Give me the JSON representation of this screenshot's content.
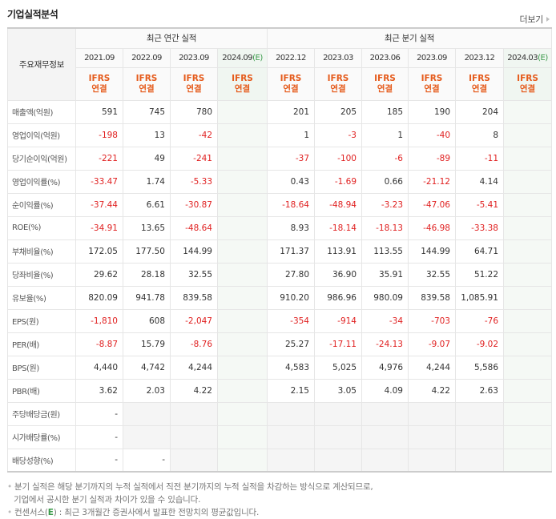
{
  "title": "기업실적분석",
  "more_label": "더보기",
  "table": {
    "row_header": "주요재무정보",
    "group_annual": "최근 연간 실적",
    "group_quarter": "최근 분기 실적",
    "periods": [
      {
        "label": "2021.09",
        "est": false
      },
      {
        "label": "2022.09",
        "est": false
      },
      {
        "label": "2023.09",
        "est": false
      },
      {
        "label": "2024.09",
        "est": true
      },
      {
        "label": "2022.12",
        "est": false
      },
      {
        "label": "2023.03",
        "est": false
      },
      {
        "label": "2023.06",
        "est": false
      },
      {
        "label": "2023.09",
        "est": false
      },
      {
        "label": "2023.12",
        "est": false
      },
      {
        "label": "2024.03",
        "est": true
      }
    ],
    "est_suffix": "(E)",
    "basis_line1": "IFRS",
    "basis_line2": "연결",
    "rows": [
      {
        "label": "매출액(억원)",
        "values": [
          "591",
          "745",
          "780",
          "",
          "201",
          "205",
          "185",
          "190",
          "204",
          ""
        ]
      },
      {
        "label": "영업이익(억원)",
        "values": [
          "-198",
          "13",
          "-42",
          "",
          "1",
          "-3",
          "1",
          "-40",
          "8",
          ""
        ]
      },
      {
        "label": "당기순이익(억원)",
        "values": [
          "-221",
          "49",
          "-241",
          "",
          "-37",
          "-100",
          "-6",
          "-89",
          "-11",
          ""
        ]
      },
      {
        "label": "영업이익률(%)",
        "values": [
          "-33.47",
          "1.74",
          "-5.33",
          "",
          "0.43",
          "-1.69",
          "0.66",
          "-21.12",
          "4.14",
          ""
        ]
      },
      {
        "label": "순이익률(%)",
        "values": [
          "-37.44",
          "6.61",
          "-30.87",
          "",
          "-18.64",
          "-48.94",
          "-3.23",
          "-47.06",
          "-5.41",
          ""
        ]
      },
      {
        "label": "ROE(%)",
        "values": [
          "-34.91",
          "13.65",
          "-48.64",
          "",
          "8.93",
          "-18.14",
          "-18.13",
          "-46.98",
          "-33.38",
          ""
        ]
      },
      {
        "label": "부채비율(%)",
        "values": [
          "172.05",
          "177.50",
          "144.99",
          "",
          "171.37",
          "113.91",
          "113.55",
          "144.99",
          "64.71",
          ""
        ]
      },
      {
        "label": "당좌비율(%)",
        "values": [
          "29.62",
          "28.18",
          "32.55",
          "",
          "27.80",
          "36.90",
          "35.91",
          "32.55",
          "51.22",
          ""
        ]
      },
      {
        "label": "유보율(%)",
        "values": [
          "820.09",
          "941.78",
          "839.58",
          "",
          "910.20",
          "986.96",
          "980.09",
          "839.58",
          "1,085.91",
          ""
        ]
      },
      {
        "label": "EPS(원)",
        "values": [
          "-1,810",
          "608",
          "-2,047",
          "",
          "-354",
          "-914",
          "-34",
          "-703",
          "-76",
          ""
        ]
      },
      {
        "label": "PER(배)",
        "values": [
          "-8.87",
          "15.79",
          "-8.76",
          "",
          "25.27",
          "-17.11",
          "-24.13",
          "-9.07",
          "-9.02",
          ""
        ]
      },
      {
        "label": "BPS(원)",
        "values": [
          "4,440",
          "4,742",
          "4,244",
          "",
          "4,583",
          "5,025",
          "4,976",
          "4,244",
          "5,586",
          ""
        ]
      },
      {
        "label": "PBR(배)",
        "values": [
          "3.62",
          "2.03",
          "4.22",
          "",
          "2.15",
          "3.05",
          "4.09",
          "4.22",
          "2.63",
          ""
        ]
      },
      {
        "label": "주당배당금(원)",
        "values": [
          "-",
          "",
          "",
          "",
          "",
          "",
          "",
          "",
          "",
          ""
        ]
      },
      {
        "label": "시가배당률(%)",
        "values": [
          "-",
          "",
          "",
          "",
          "",
          "",
          "",
          "",
          "",
          ""
        ]
      },
      {
        "label": "배당성향(%)",
        "values": [
          "-",
          "-",
          "",
          "",
          "",
          "",
          "",
          "",
          "",
          ""
        ]
      }
    ]
  },
  "notes": {
    "line1": "분기 실적은 해당 분기까지의 누적 실적에서 직전 분기까지의 누적 실적을 차감하는 방식으로 계산되므로,",
    "line2": "기업에서 공시한 분기 실적과 차이가 있을 수 있습니다.",
    "line3_prefix": "컨센서스(",
    "line3_e": "E",
    "line3_suffix": ") : 최근 3개월간 증권사에서 발표한 전망치의 평균값입니다."
  },
  "colors": {
    "negative": "#e02020",
    "ifrs": "#e55b1c",
    "estimate": "#3a9a4a",
    "estimate_bg": "#f5f9f5"
  }
}
